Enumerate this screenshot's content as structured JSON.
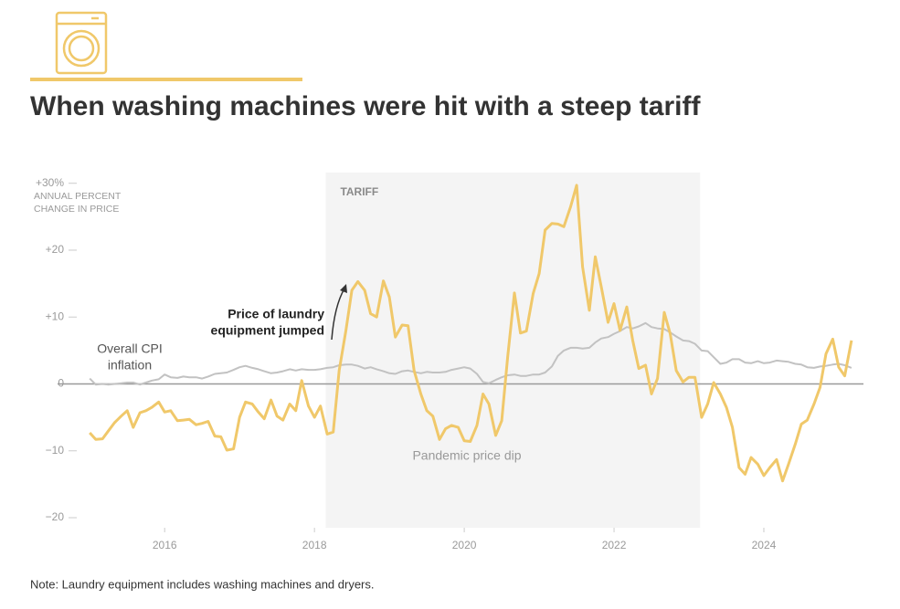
{
  "title": "When washing machines were hit with a steep tariff",
  "note": "Note: Laundry equipment includes washing machines and dryers.",
  "chart_data": {
    "type": "line",
    "y_axis_label": [
      "ANNUAL PERCENT",
      "CHANGE IN PRICE"
    ],
    "xlim": [
      2014.57,
      2025.33
    ],
    "ylim": [
      -21.5,
      31.6
    ],
    "xticks": [
      2016,
      2018,
      2020,
      2022,
      2024
    ],
    "yticks": [
      {
        "value": 30,
        "label": "+30%"
      },
      {
        "value": 20,
        "label": "+20"
      },
      {
        "value": 10,
        "label": "+10"
      },
      0,
      {
        "value": -10,
        "label": "−10"
      },
      {
        "value": -20,
        "label": "−20"
      }
    ],
    "tariff": {
      "label": "TARIFF",
      "start": 2018.15,
      "end": 2023.15
    },
    "annotations": [
      {
        "lines": [
          "Overall CPI",
          "inflation"
        ]
      },
      {
        "lines": [
          "Price of laundry",
          "equipment jumped"
        ]
      },
      {
        "lines": [
          "Pandemic price dip"
        ]
      }
    ],
    "x": [
      2015,
      2015.08,
      2015.17,
      2015.25,
      2015.33,
      2015.42,
      2015.5,
      2015.58,
      2015.67,
      2015.75,
      2015.83,
      2015.92,
      2016,
      2016.08,
      2016.17,
      2016.25,
      2016.33,
      2016.42,
      2016.5,
      2016.58,
      2016.67,
      2016.75,
      2016.83,
      2016.92,
      2017,
      2017.08,
      2017.17,
      2017.25,
      2017.33,
      2017.42,
      2017.5,
      2017.58,
      2017.67,
      2017.75,
      2017.83,
      2017.92,
      2018,
      2018.08,
      2018.17,
      2018.25,
      2018.33,
      2018.42,
      2018.5,
      2018.58,
      2018.67,
      2018.75,
      2018.83,
      2018.92,
      2019,
      2019.08,
      2019.17,
      2019.25,
      2019.33,
      2019.42,
      2019.5,
      2019.58,
      2019.67,
      2019.75,
      2019.83,
      2019.92,
      2020,
      2020.08,
      2020.17,
      2020.25,
      2020.33,
      2020.42,
      2020.5,
      2020.58,
      2020.67,
      2020.75,
      2020.83,
      2020.92,
      2021,
      2021.08,
      2021.17,
      2021.25,
      2021.33,
      2021.42,
      2021.5,
      2021.58,
      2021.67,
      2021.75,
      2021.83,
      2021.92,
      2022,
      2022.08,
      2022.17,
      2022.25,
      2022.33,
      2022.42,
      2022.5,
      2022.58,
      2022.67,
      2022.75,
      2022.83,
      2022.92,
      2023,
      2023.08,
      2023.17,
      2023.25,
      2023.33,
      2023.42,
      2023.5,
      2023.58,
      2023.67,
      2023.75,
      2023.83,
      2023.92,
      2024,
      2024.08,
      2024.17,
      2024.25,
      2024.33,
      2024.42,
      2024.5,
      2024.58,
      2024.67,
      2024.75,
      2024.83,
      2024.92,
      2025,
      2025.08,
      2025.17
    ],
    "series": [
      {
        "color": "#c2c2c2",
        "values": [
          0.8,
          -0.1,
          0,
          -0.1,
          0,
          0.1,
          0.2,
          0.2,
          -0.1,
          0.2,
          0.5,
          0.7,
          1.4,
          1,
          0.9,
          1.1,
          1,
          1,
          0.8,
          1.1,
          1.5,
          1.6,
          1.7,
          2.1,
          2.5,
          2.7,
          2.4,
          2.2,
          1.9,
          1.6,
          1.7,
          1.9,
          2.2,
          2,
          2.2,
          2.1,
          2.1,
          2.2,
          2.4,
          2.5,
          2.8,
          2.9,
          2.9,
          2.7,
          2.3,
          2.5,
          2.2,
          1.9,
          1.6,
          1.5,
          1.9,
          2,
          1.8,
          1.6,
          1.8,
          1.7,
          1.7,
          1.8,
          2.1,
          2.3,
          2.5,
          2.3,
          1.5,
          0.3,
          0.1,
          0.6,
          1,
          1.3,
          1.4,
          1.2,
          1.2,
          1.4,
          1.4,
          1.7,
          2.6,
          4.2,
          5,
          5.4,
          5.4,
          5.3,
          5.4,
          6.2,
          6.8,
          7,
          7.5,
          7.9,
          8.5,
          8.3,
          8.6,
          9.1,
          8.5,
          8.3,
          8.2,
          7.7,
          7.1,
          6.5,
          6.4,
          6,
          5,
          4.9,
          4,
          3,
          3.2,
          3.7,
          3.7,
          3.2,
          3.1,
          3.4,
          3.1,
          3.2,
          3.5,
          3.4,
          3.3,
          3,
          2.9,
          2.5,
          2.4,
          2.6,
          2.7,
          2.9,
          3,
          2.8,
          2.4
        ]
      },
      {
        "color": "#f0c86a",
        "values": [
          -7.3,
          -8.3,
          -8.2,
          -7,
          -5.8,
          -4.8,
          -4,
          -6.5,
          -4.3,
          -4,
          -3.5,
          -2.7,
          -4.2,
          -4,
          -5.5,
          -5.4,
          -5.3,
          -6.1,
          -5.9,
          -5.6,
          -7.8,
          -7.9,
          -9.9,
          -9.7,
          -5,
          -2.7,
          -3,
          -4.2,
          -5.2,
          -2.4,
          -4.8,
          -5.4,
          -3,
          -4,
          0.5,
          -3.3,
          -5,
          -3.3,
          -7.5,
          -7.2,
          2,
          8,
          14,
          15.3,
          14,
          10.5,
          10,
          15.4,
          13,
          7,
          8.8,
          8.7,
          2,
          -1.5,
          -4,
          -4.8,
          -8.3,
          -6.7,
          -6.2,
          -6.5,
          -8.5,
          -8.6,
          -6.2,
          -1.5,
          -3,
          -7.7,
          -5.5,
          4,
          13.6,
          7.6,
          7.9,
          13.5,
          16.5,
          23,
          24,
          23.9,
          23.5,
          26.5,
          29.7,
          17.5,
          11,
          19,
          14.5,
          9.2,
          12,
          8,
          11.5,
          6.5,
          2.3,
          2.8,
          -1.5,
          0.8,
          10.7,
          7.5,
          2,
          0.3,
          1,
          1,
          -5,
          -3,
          0.2,
          -1.5,
          -3.5,
          -6.5,
          -12.5,
          -13.5,
          -11,
          -12,
          -13.7,
          -12.5,
          -11.3,
          -14.5,
          -12,
          -9,
          -6,
          -5.4,
          -3,
          -0.5,
          4.5,
          6.7,
          2.5,
          1.2,
          6.5
        ]
      }
    ]
  }
}
